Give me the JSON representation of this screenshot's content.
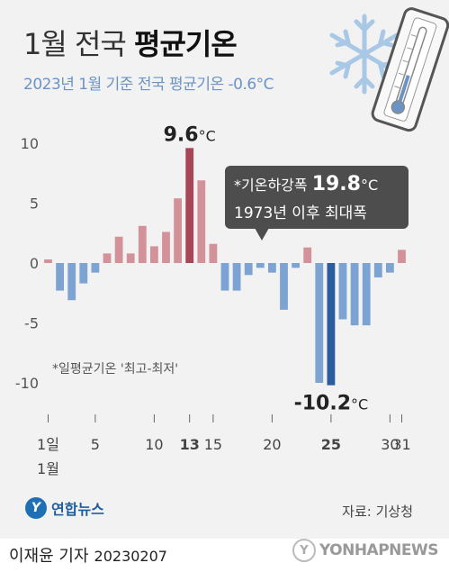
{
  "title": {
    "light": "1월 전국 ",
    "bold": "평균기온"
  },
  "subtitle": "2023년 1월 기준 전국 평균기온 -0.6°C",
  "callout": {
    "prefix": "*기온하강폭 ",
    "value": "19.8",
    "unit": "°C",
    "line2": "1973년 이후 최대폭"
  },
  "note": "*일평균기온 '최고-최저'",
  "logo": {
    "mark": "Y",
    "text": "연합뉴스"
  },
  "source": "자료: 기상청",
  "byline": {
    "name": "이재윤 기자",
    "date": "20230207"
  },
  "agency": {
    "mark": "Y",
    "text": "YONHAPNEWS"
  },
  "colors": {
    "positive": "#d3929a",
    "positive_peak": "#a84557",
    "negative": "#7ca3d1",
    "negative_peak": "#2b5c9e",
    "background": "#f2f2f2"
  },
  "chart_data": {
    "type": "bar",
    "x": [
      1,
      2,
      3,
      4,
      5,
      6,
      7,
      8,
      9,
      10,
      11,
      12,
      13,
      14,
      15,
      16,
      17,
      18,
      19,
      20,
      21,
      22,
      23,
      24,
      25,
      26,
      27,
      28,
      29,
      30,
      31
    ],
    "values": [
      0.3,
      -2.3,
      -3.1,
      -1.7,
      -0.8,
      0.8,
      2.2,
      0.8,
      3.1,
      1.4,
      2.6,
      5.4,
      9.6,
      6.9,
      1.6,
      -2.3,
      -2.3,
      -1.0,
      -0.4,
      -0.8,
      -3.9,
      -0.4,
      1.3,
      -10.0,
      -10.2,
      -4.7,
      -5.2,
      -5.2,
      -1.2,
      -0.8,
      1.1
    ],
    "ylim": [
      -11,
      11
    ],
    "yticks": [
      "10",
      "5",
      "0",
      "-5",
      "-10"
    ],
    "yticks_values": [
      10,
      5,
      0,
      -5,
      -10
    ],
    "xtick_labels": [
      {
        "day": 1,
        "label": "1일",
        "label2": "1월",
        "bold": false
      },
      {
        "day": 5,
        "label": "5",
        "bold": false
      },
      {
        "day": 10,
        "label": "10",
        "bold": false
      },
      {
        "day": 13,
        "label": "13",
        "bold": true
      },
      {
        "day": 15,
        "label": "15",
        "bold": false
      },
      {
        "day": 20,
        "label": "20",
        "bold": false
      },
      {
        "day": 25,
        "label": "25",
        "bold": true
      },
      {
        "day": 30,
        "label": "30",
        "bold": false
      },
      {
        "day": 31,
        "label": "31",
        "bold": false
      }
    ],
    "annotations": [
      {
        "day": 13,
        "value": "9.6",
        "unit": "°C"
      },
      {
        "day": 25,
        "value": "-10.2",
        "unit": "°C"
      }
    ],
    "grid": false
  }
}
